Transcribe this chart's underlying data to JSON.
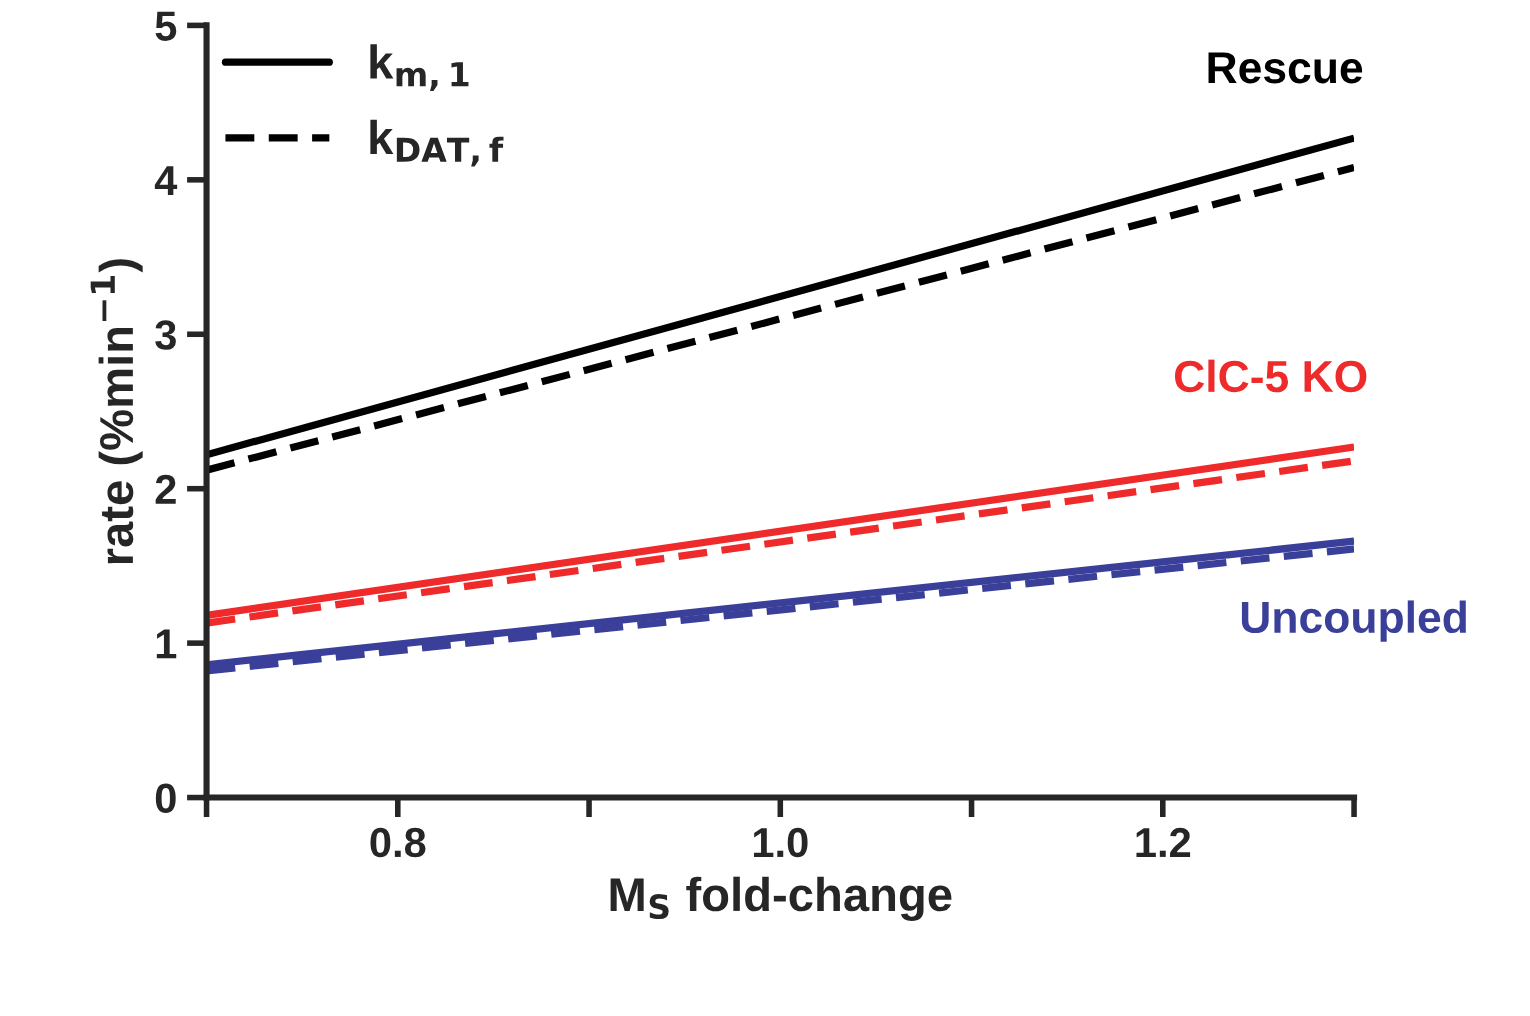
{
  "chart_data": {
    "type": "line",
    "xlabel": "M$_{S}$ fold-change",
    "ylabel": "rate (%min$^{−1}$)",
    "xlim": [
      0.7,
      1.3
    ],
    "ylim": [
      0,
      5
    ],
    "xticks": [
      {
        "value": 0.7,
        "label": null
      },
      {
        "value": 0.8,
        "label": "0.8"
      },
      {
        "value": 0.9,
        "label": null
      },
      {
        "value": 1.0,
        "label": "1.0"
      },
      {
        "value": 1.1,
        "label": null
      },
      {
        "value": 1.2,
        "label": "1.2"
      },
      {
        "value": 1.3,
        "label": null
      }
    ],
    "yticks": [
      0,
      1,
      2,
      3,
      4,
      5
    ],
    "x": [
      0.7,
      1.3
    ],
    "grid": false,
    "legend": "top left",
    "marker": "none",
    "series": [
      {
        "name": "k$_{m,1}$",
        "color": "#000000",
        "values": [
          2.22,
          4.27
        ],
        "line_style": "solid"
      },
      {
        "name": "k$_{DAT,f}$",
        "color": "#000000",
        "values": [
          2.12,
          4.08
        ],
        "line_style": "dashed"
      },
      {
        "color": "#ee2a2a",
        "values": [
          1.18,
          2.27
        ],
        "line_style": "solid"
      },
      {
        "color": "#ee2a2a",
        "values": [
          1.13,
          2.18
        ],
        "line_style": "dashed"
      },
      {
        "color": "#3a3f9a",
        "values": [
          0.86,
          1.66
        ],
        "line_style": "solid"
      },
      {
        "color": "#3a3f9a",
        "values": [
          0.82,
          1.61
        ],
        "line_style": "dashed"
      }
    ],
    "annotations": [
      "Rescue",
      "ClC-5 KO",
      "Uncoupled"
    ]
  }
}
